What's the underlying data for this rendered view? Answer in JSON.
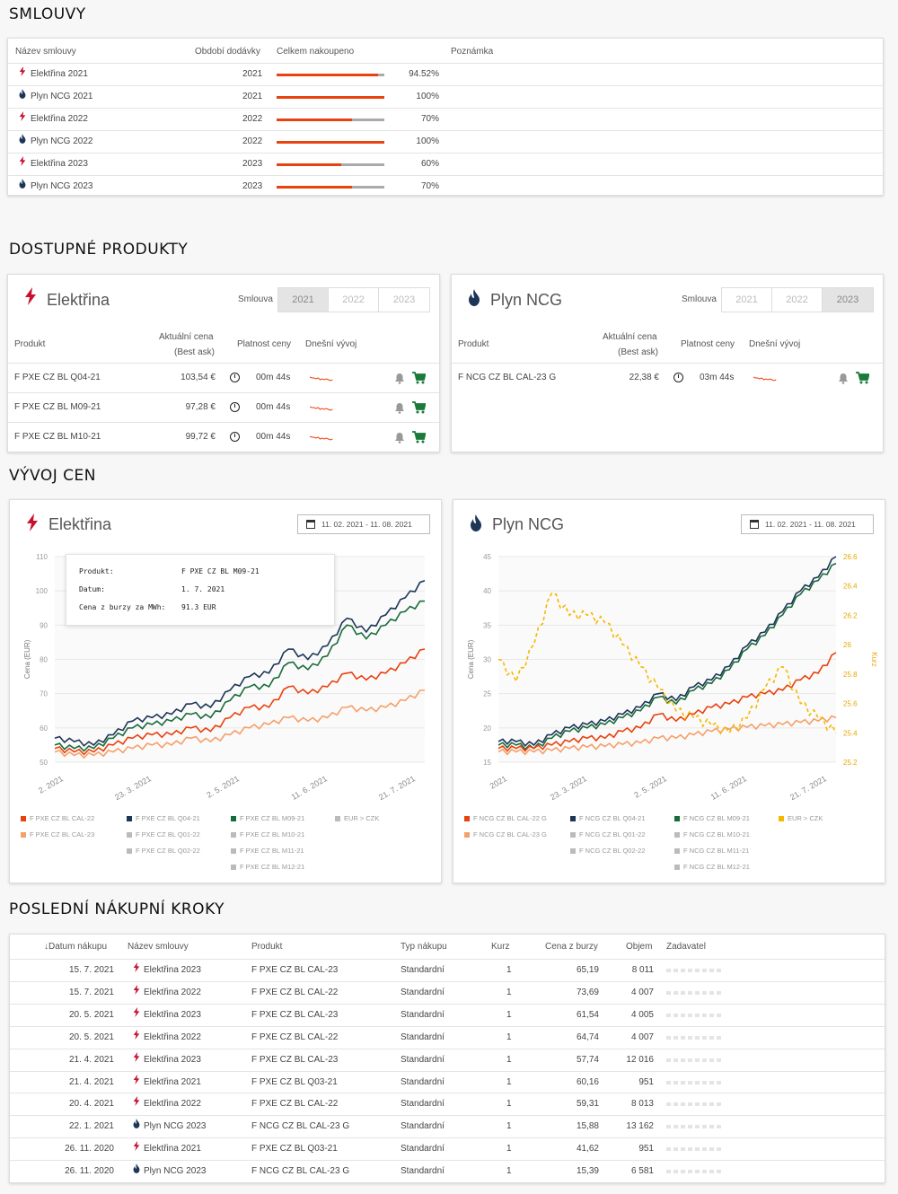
{
  "sections": {
    "contracts": "SMLOUVY",
    "products": "DOSTUPNÉ PRODUKTY",
    "prices": "VÝVOJ CEN",
    "steps": "POSLEDNÍ NÁKUPNÍ KROKY"
  },
  "contracts": {
    "headers": [
      "Název smlouvy",
      "Období dodávky",
      "Celkem nakoupeno",
      "Poznámka"
    ],
    "rows": [
      {
        "icon": "bolt-icon",
        "name": "Elektřina 2021",
        "period": "2021",
        "pct": 94.52,
        "pct_label": "94.52%"
      },
      {
        "icon": "flame-icon",
        "name": "Plyn NCG 2021",
        "period": "2021",
        "pct": 100,
        "pct_label": "100%"
      },
      {
        "icon": "bolt-icon",
        "name": "Elektřina 2022",
        "period": "2022",
        "pct": 70,
        "pct_label": "70%"
      },
      {
        "icon": "flame-icon",
        "name": "Plyn NCG 2022",
        "period": "2022",
        "pct": 100,
        "pct_label": "100%"
      },
      {
        "icon": "bolt-icon",
        "name": "Elektřina 2023",
        "period": "2023",
        "pct": 60,
        "pct_label": "60%"
      },
      {
        "icon": "flame-icon",
        "name": "Plyn NCG 2023",
        "period": "2023",
        "pct": 70,
        "pct_label": "70%"
      }
    ]
  },
  "products": {
    "seg_label": "Smlouva",
    "years": [
      "2021",
      "2022",
      "2023"
    ],
    "headers": {
      "product": "Produkt",
      "price1": "Aktuální cena",
      "price2": "(Best ask)",
      "validity": "Platnost ceny",
      "today": "Dnešní vývoj"
    },
    "electricity": {
      "title": "Elektřina",
      "active_year": "2021",
      "rows": [
        {
          "name": "F PXE CZ BL Q04-21",
          "price": "103,54 €",
          "validity": "00m 44s"
        },
        {
          "name": "F PXE CZ BL M09-21",
          "price": "97,28 €",
          "validity": "00m 44s"
        },
        {
          "name": "F PXE CZ BL M10-21",
          "price": "99,72 €",
          "validity": "00m 44s"
        }
      ]
    },
    "gas": {
      "title": "Plyn NCG",
      "active_year": "2023",
      "rows": [
        {
          "name": "F NCG CZ BL CAL-23 G",
          "price": "22,38 €",
          "validity": "03m 44s"
        }
      ]
    }
  },
  "charts": {
    "electricity": {
      "title": "Elektřina",
      "date_range": "11. 02. 2021 - 11. 08. 2021",
      "tooltip": {
        "k1": "Produkt:",
        "v1": "F PXE CZ BL M09-21",
        "k2": "Datum:",
        "v2": "1. 7. 2021",
        "k3": "Cena z burzy za MWh:",
        "v3": "91.3 EUR"
      },
      "legend": [
        {
          "name": "F PXE CZ BL CAL-22",
          "color": "#e8420e"
        },
        {
          "name": "F PXE CZ BL CAL-23",
          "color": "#f4a06a"
        },
        {
          "name": "F PXE CZ BL Q04-21",
          "color": "#1d3557"
        },
        {
          "name": "F PXE CZ BL Q01-22",
          "color": "#bbbbbb"
        },
        {
          "name": "F PXE CZ BL Q02-22",
          "color": "#bbbbbb"
        },
        {
          "name": "F PXE CZ BL M09-21",
          "color": "#1a6b3c"
        },
        {
          "name": "F PXE CZ BL M10-21",
          "color": "#bbbbbb"
        },
        {
          "name": "F PXE CZ BL M11-21",
          "color": "#bbbbbb"
        },
        {
          "name": "F PXE CZ BL M12-21",
          "color": "#bbbbbb"
        },
        {
          "name": "EUR > CZK",
          "color": "#bbbbbb"
        }
      ]
    },
    "gas": {
      "title": "Plyn NCG",
      "date_range": "11. 02. 2021 - 11. 08. 2021",
      "legend": [
        {
          "name": "F NCG CZ BL CAL-22 G",
          "color": "#e8420e"
        },
        {
          "name": "F NCG CZ BL CAL-23 G",
          "color": "#f4a06a"
        },
        {
          "name": "F NCG CZ BL Q04-21",
          "color": "#1d3557"
        },
        {
          "name": "F NCG CZ BL Q01-22",
          "color": "#bbbbbb"
        },
        {
          "name": "F NCG CZ BL Q02-22",
          "color": "#bbbbbb"
        },
        {
          "name": "F NCG CZ BL M09-21",
          "color": "#1a6b3c"
        },
        {
          "name": "F NCG CZ BL M10-21",
          "color": "#bbbbbb"
        },
        {
          "name": "F NCG CZ BL M11-21",
          "color": "#bbbbbb"
        },
        {
          "name": "F NCG CZ BL M12-21",
          "color": "#bbbbbb"
        },
        {
          "name": "EUR > CZK",
          "color": "#f5b800"
        }
      ]
    }
  },
  "chart_data": [
    {
      "type": "line",
      "ylabel": "Cena (EUR)",
      "ylim": [
        50,
        110
      ],
      "yticks": [
        "110",
        "100",
        "90",
        "80",
        "70",
        "60",
        "50"
      ],
      "xticks": [
        "2. 2021",
        "23. 3. 2021",
        "2. 5. 2021",
        "11. 6. 2021",
        "21. 7. 2021"
      ],
      "series": [
        {
          "name": "F PXE CZ BL Q04-21",
          "color": "#1d3557",
          "values": [
            57,
            56,
            55,
            58,
            62,
            63,
            64,
            67,
            66,
            71,
            75,
            76,
            83,
            80,
            84,
            92,
            88,
            93,
            98,
            103
          ]
        },
        {
          "name": "F PXE CZ BL M09-21",
          "color": "#1a6b3c",
          "values": [
            55,
            54,
            54,
            57,
            60,
            61,
            62,
            64,
            63,
            68,
            72,
            72,
            79,
            77,
            81,
            90,
            86,
            90,
            94,
            97
          ]
        },
        {
          "name": "F PXE CZ BL CAL-22",
          "color": "#e8420e",
          "values": [
            54,
            53,
            53,
            55,
            57,
            58,
            58,
            60,
            59,
            63,
            66,
            66,
            72,
            70,
            72,
            76,
            74,
            76,
            79,
            83
          ]
        },
        {
          "name": "F PXE CZ BL CAL-23",
          "color": "#f4a06a",
          "values": [
            53,
            52,
            52,
            53,
            54,
            55,
            55,
            57,
            56,
            58,
            60,
            61,
            63,
            62,
            63,
            66,
            65,
            66,
            68,
            71
          ]
        }
      ]
    },
    {
      "type": "line",
      "ylabel": "Cena (EUR)",
      "y2label": "Kurz",
      "ylim": [
        15,
        45
      ],
      "y2lim": [
        25.2,
        26.6
      ],
      "yticks": [
        "45",
        "40",
        "35",
        "30",
        "25",
        "20",
        "15"
      ],
      "y2ticks": [
        "26.6",
        "26.4",
        "26.2",
        "26",
        "25.8",
        "25.6",
        "25.4",
        "25.2"
      ],
      "xticks": [
        "2021",
        "23. 3. 2021",
        "2. 5. 2021",
        "11. 6. 2021",
        "21. 7. 2021"
      ],
      "series": [
        {
          "name": "F NCG CZ BL Q04-21",
          "color": "#1d3557",
          "values": [
            18,
            18,
            17.5,
            19,
            20,
            20.5,
            21,
            22,
            23,
            25,
            24,
            26,
            27,
            29,
            32,
            34,
            37,
            40,
            42,
            45
          ]
        },
        {
          "name": "F NCG CZ BL M09-21",
          "color": "#1a6b3c",
          "values": [
            17.5,
            17.5,
            17,
            18.5,
            19.5,
            20,
            20.5,
            21.5,
            22.5,
            24.5,
            23.5,
            25.5,
            26.5,
            28.5,
            31.5,
            33.5,
            36.5,
            39.5,
            41.5,
            44
          ]
        },
        {
          "name": "F NCG CZ BL CAL-22 G",
          "color": "#e8420e",
          "values": [
            17,
            17,
            17,
            17.5,
            18,
            18.5,
            18.5,
            19.5,
            20,
            22,
            21,
            22,
            23,
            23.5,
            24.5,
            25,
            25.5,
            27,
            28,
            31
          ]
        },
        {
          "name": "F NCG CZ BL CAL-23 G",
          "color": "#f4a06a",
          "values": [
            16.5,
            16.5,
            16.5,
            16.7,
            17,
            17.2,
            17.3,
            17.6,
            17.8,
            18.5,
            18.5,
            19,
            19.5,
            19.8,
            20.1,
            20.3,
            20.5,
            20.8,
            21,
            21.5
          ]
        },
        {
          "name": "EUR > CZK",
          "color": "#f5b800",
          "values": [
            25.9,
            25.75,
            26.0,
            26.35,
            26.2,
            26.2,
            26.15,
            26.0,
            25.85,
            25.7,
            25.55,
            25.5,
            25.45,
            25.4,
            25.5,
            25.7,
            25.85,
            25.6,
            25.5,
            25.4
          ]
        }
      ]
    }
  ],
  "steps": {
    "headers": [
      "↓Datum nákupu",
      "Název smlouvy",
      "Produkt",
      "Typ nákupu",
      "Kurz",
      "Cena z burzy",
      "Objem",
      "Zadavatel"
    ],
    "rows": [
      {
        "date": "15. 7. 2021",
        "icon": "bolt-icon",
        "contract": "Elektřina 2023",
        "product": "F PXE CZ BL CAL-23",
        "type": "Standardní",
        "rate": "1",
        "price": "65,19",
        "volume": "8 011"
      },
      {
        "date": "15. 7. 2021",
        "icon": "bolt-icon",
        "contract": "Elektřina 2022",
        "product": "F PXE CZ BL CAL-22",
        "type": "Standardní",
        "rate": "1",
        "price": "73,69",
        "volume": "4 007"
      },
      {
        "date": "20. 5. 2021",
        "icon": "bolt-icon",
        "contract": "Elektřina 2023",
        "product": "F PXE CZ BL CAL-23",
        "type": "Standardní",
        "rate": "1",
        "price": "61,54",
        "volume": "4 005"
      },
      {
        "date": "20. 5. 2021",
        "icon": "bolt-icon",
        "contract": "Elektřina 2022",
        "product": "F PXE CZ BL CAL-22",
        "type": "Standardní",
        "rate": "1",
        "price": "64,74",
        "volume": "4 007"
      },
      {
        "date": "21. 4. 2021",
        "icon": "bolt-icon",
        "contract": "Elektřina 2023",
        "product": "F PXE CZ BL CAL-23",
        "type": "Standardní",
        "rate": "1",
        "price": "57,74",
        "volume": "12 016"
      },
      {
        "date": "21. 4. 2021",
        "icon": "bolt-icon",
        "contract": "Elektřina 2021",
        "product": "F PXE CZ BL Q03-21",
        "type": "Standardní",
        "rate": "1",
        "price": "60,16",
        "volume": "951"
      },
      {
        "date": "20. 4. 2021",
        "icon": "bolt-icon",
        "contract": "Elektřina 2022",
        "product": "F PXE CZ BL CAL-22",
        "type": "Standardní",
        "rate": "1",
        "price": "59,31",
        "volume": "8 013"
      },
      {
        "date": "22. 1. 2021",
        "icon": "flame-icon",
        "contract": "Plyn NCG 2023",
        "product": "F NCG CZ BL CAL-23 G",
        "type": "Standardní",
        "rate": "1",
        "price": "15,88",
        "volume": "13 162"
      },
      {
        "date": "26. 11. 2020",
        "icon": "bolt-icon",
        "contract": "Elektřina 2021",
        "product": "F PXE CZ BL Q03-21",
        "type": "Standardní",
        "rate": "1",
        "price": "41,62",
        "volume": "951"
      },
      {
        "date": "26. 11. 2020",
        "icon": "flame-icon",
        "contract": "Plyn NCG 2023",
        "product": "F NCG CZ BL CAL-23 G",
        "type": "Standardní",
        "rate": "1",
        "price": "15,39",
        "volume": "6 581"
      }
    ]
  }
}
